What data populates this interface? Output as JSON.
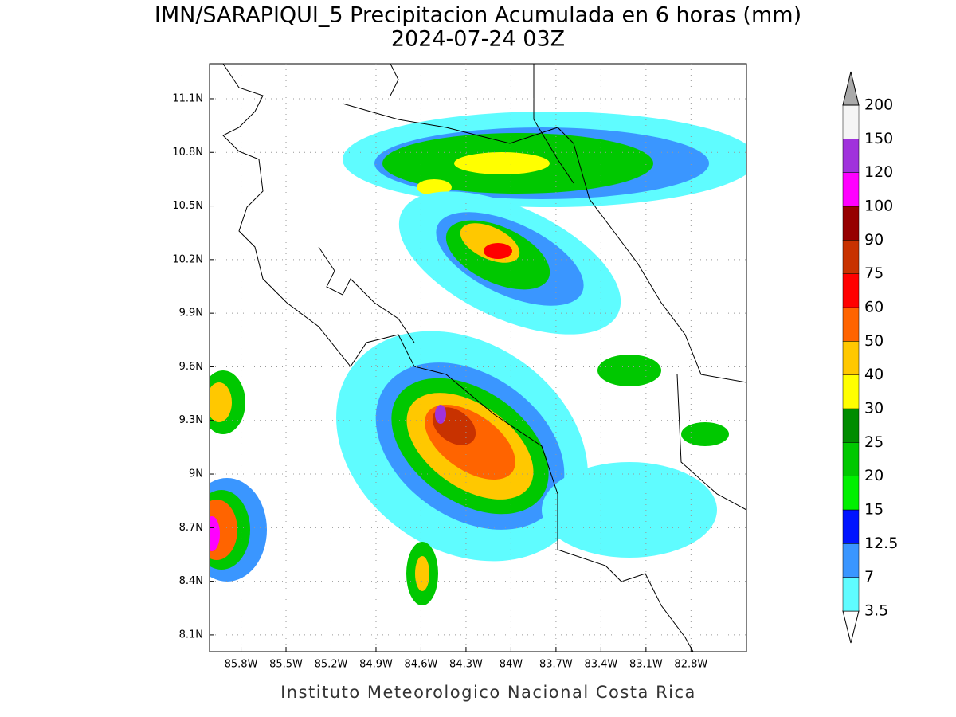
{
  "chart_data": {
    "type": "contour-map",
    "title": "IMN/SARAPIQUI_5 Precipitacion Acumulada en 6 horas (mm)",
    "subtitle": "2024-07-24 03Z",
    "footer": "Instituto Meteorologico Nacional Costa Rica",
    "xlim": [
      -86.01,
      -82.43
    ],
    "ylim": [
      8.006,
      11.296
    ],
    "xticks": [
      {
        "value": -85.8,
        "label": "85.8W"
      },
      {
        "value": -85.5,
        "label": "85.5W"
      },
      {
        "value": -85.2,
        "label": "85.2W"
      },
      {
        "value": -84.9,
        "label": "84.9W"
      },
      {
        "value": -84.6,
        "label": "84.6W"
      },
      {
        "value": -84.3,
        "label": "84.3W"
      },
      {
        "value": -84,
        "label": "84W"
      },
      {
        "value": -83.7,
        "label": "83.7W"
      },
      {
        "value": -83.4,
        "label": "83.4W"
      },
      {
        "value": -83.1,
        "label": "83.1W"
      },
      {
        "value": -82.8,
        "label": "82.8W"
      }
    ],
    "yticks": [
      {
        "value": 8.1,
        "label": "8.1N"
      },
      {
        "value": 8.4,
        "label": "8.4N"
      },
      {
        "value": 8.7,
        "label": "8.7N"
      },
      {
        "value": 9,
        "label": "9N"
      },
      {
        "value": 9.3,
        "label": "9.3N"
      },
      {
        "value": 9.6,
        "label": "9.6N"
      },
      {
        "value": 9.9,
        "label": "9.9N"
      },
      {
        "value": 10.2,
        "label": "10.2N"
      },
      {
        "value": 10.5,
        "label": "10.5N"
      },
      {
        "value": 10.8,
        "label": "10.8N"
      },
      {
        "value": 11.1,
        "label": "11.1N"
      }
    ],
    "grid": true,
    "colorbar": {
      "levels": [
        3.5,
        7,
        12.5,
        15,
        20,
        25,
        30,
        40,
        50,
        60,
        75,
        90,
        100,
        120,
        150,
        200
      ],
      "colors": [
        "#ffffff",
        "#5ffcff",
        "#3a96ff",
        "#0014ff",
        "#00f000",
        "#00c800",
        "#008c00",
        "#ffff00",
        "#ffc800",
        "#ff6400",
        "#ff0000",
        "#c83200",
        "#960000",
        "#ff00ff",
        "#a032dc",
        "#f5f5f5",
        "#aaaaaa"
      ]
    }
  }
}
